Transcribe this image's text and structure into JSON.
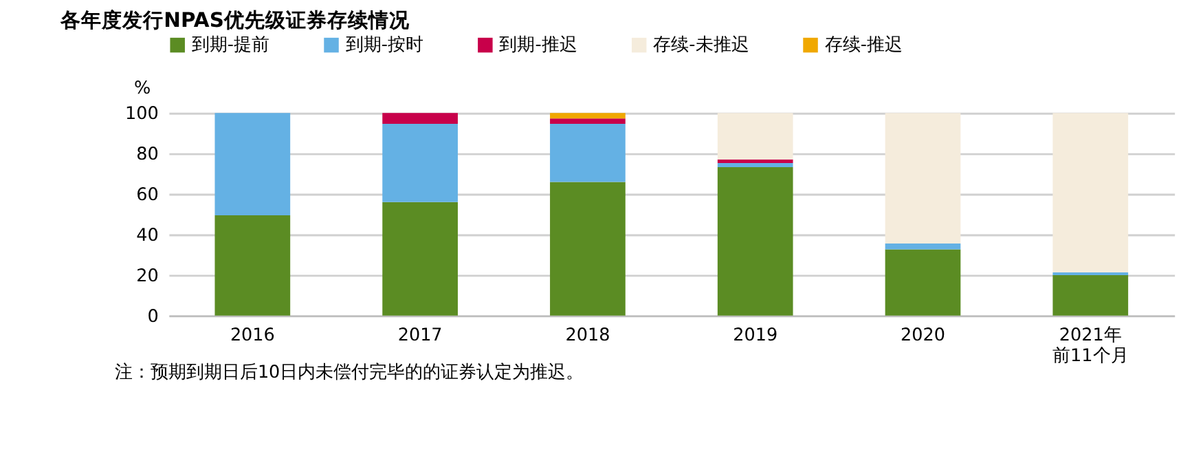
{
  "chart_data": {
    "type": "bar",
    "title": "各年度发行NPAS优先级证券存续情况",
    "ylabel": "%",
    "categories": [
      "2016",
      "2017",
      "2018",
      "2019",
      "2020",
      "2021年前11个月"
    ],
    "stacked": true,
    "ylim": [
      0,
      100
    ],
    "yticks": [
      0,
      20,
      40,
      60,
      80,
      100
    ],
    "grid": "y",
    "legend": "top",
    "series": [
      {
        "name": "到期-提前",
        "color": "#5b8c23",
        "values": [
          49.5,
          56,
          66,
          73.3,
          32.7,
          20
        ]
      },
      {
        "name": "到期-按时",
        "color": "#64b1e4",
        "values": [
          50.5,
          38.7,
          28.7,
          2,
          2.9,
          1.3
        ]
      },
      {
        "name": "到期-推迟",
        "color": "#c8004a",
        "values": [
          null,
          5.3,
          2.6,
          1.8,
          null,
          null
        ]
      },
      {
        "name": "存续-未推迟",
        "color": "#f5ecdc",
        "values": [
          null,
          null,
          null,
          22.9,
          64.4,
          78.7
        ]
      },
      {
        "name": "存续-推迟",
        "color": "#f0a800",
        "values": [
          null,
          null,
          2.7,
          null,
          null,
          null
        ]
      }
    ],
    "annotations": [
      "注：预期到期日后10日内未偿付完毕的的证券认定为推迟。"
    ]
  }
}
